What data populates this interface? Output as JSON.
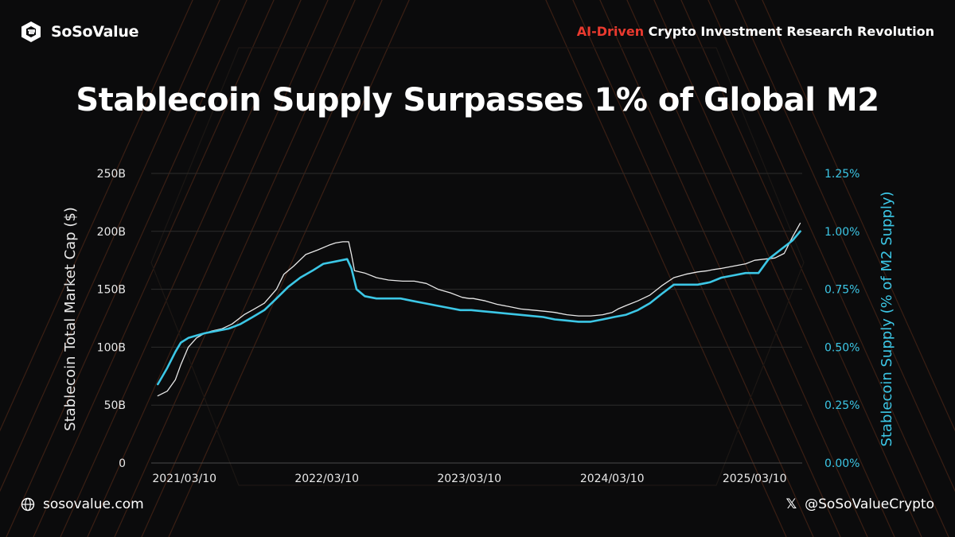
{
  "brand": {
    "name": "SoSoValue",
    "logo_icon": "sosovalue-logo-icon"
  },
  "tagline": {
    "accent": "AI-Driven",
    "rest": " Crypto Investment Research Revolution",
    "accent_color": "#ea3a2f"
  },
  "title": "Stablecoin Supply Surpasses 1% of Global M2",
  "footer": {
    "website": "sosovalue.com",
    "website_icon": "globe-icon",
    "social_handle": "@SoSoValueCrypto",
    "social_icon": "x-logo-icon"
  },
  "chart_data": {
    "type": "line",
    "title": "Stablecoin Supply Surpasses 1% of Global M2",
    "ylabel": "Stablecoin Total Market Cap ($)",
    "ylabel_right": "Stablecoin Supply (% of M2 Supply)",
    "ylim": [
      0,
      250
    ],
    "ylim_right": [
      0,
      1.25
    ],
    "xlim": [
      "2020-12-15",
      "2025-07-10"
    ],
    "y_ticks": [
      0,
      50,
      100,
      150,
      200,
      250
    ],
    "y_tick_labels": [
      "0",
      "50B",
      "100B",
      "150B",
      "200B",
      "250B"
    ],
    "y_right_ticks": [
      0,
      0.25,
      0.5,
      0.75,
      1.0,
      1.25
    ],
    "y_right_tick_labels": [
      "0.00%",
      "0.25%",
      "0.50%",
      "0.75%",
      "1.00%",
      "1.25%"
    ],
    "x_ticks": [
      "2021-03-10",
      "2022-03-10",
      "2023-03-10",
      "2024-03-10",
      "2025-03-10"
    ],
    "x_tick_labels": [
      "2021/03/10",
      "2022/03/10",
      "2023/03/10",
      "2024/03/10",
      "2025/03/10"
    ],
    "grid": true,
    "colors": {
      "market_cap": "#e8e8e8",
      "m2_share": "#3cc7e6",
      "right_axis": "#3cc7e6"
    },
    "series": [
      {
        "axis": "left",
        "x": [
          "2021-01-01",
          "2021-01-25",
          "2021-02-15",
          "2021-03-01",
          "2021-03-20",
          "2021-04-10",
          "2021-05-01",
          "2021-05-20",
          "2021-06-15",
          "2021-07-10",
          "2021-08-10",
          "2021-09-05",
          "2021-10-01",
          "2021-11-01",
          "2021-11-20",
          "2021-12-15",
          "2022-01-15",
          "2022-02-15",
          "2022-03-15",
          "2022-04-01",
          "2022-04-20",
          "2022-05-05",
          "2022-05-12",
          "2022-05-20",
          "2022-06-15",
          "2022-07-15",
          "2022-08-15",
          "2022-09-20",
          "2022-10-20",
          "2022-11-20",
          "2022-12-20",
          "2023-01-20",
          "2023-02-20",
          "2023-03-10",
          "2023-03-20",
          "2023-04-20",
          "2023-05-20",
          "2023-06-20",
          "2023-07-20",
          "2023-08-20",
          "2023-09-20",
          "2023-10-15",
          "2023-11-15",
          "2023-12-15",
          "2024-01-15",
          "2024-02-15",
          "2024-03-10",
          "2024-03-25",
          "2024-04-15",
          "2024-05-15",
          "2024-06-15",
          "2024-07-15",
          "2024-08-15",
          "2024-09-15",
          "2024-10-15",
          "2024-11-10",
          "2024-11-25",
          "2024-12-15",
          "2025-01-15",
          "2025-02-15",
          "2025-03-10",
          "2025-04-05",
          "2025-05-01",
          "2025-05-25",
          "2025-06-15",
          "2025-07-05"
        ],
        "values": [
          58,
          62,
          72,
          85,
          100,
          108,
          112,
          114,
          116,
          120,
          128,
          133,
          138,
          150,
          163,
          170,
          180,
          184,
          188,
          190,
          191,
          191,
          180,
          166,
          164,
          160,
          158,
          157,
          157,
          155,
          150,
          147,
          143,
          142,
          142,
          140,
          137,
          135,
          133,
          132,
          131,
          130,
          128,
          127,
          127,
          128,
          130,
          133,
          136,
          140,
          145,
          153,
          160,
          163,
          165,
          166,
          167,
          168,
          170,
          172,
          175,
          176,
          177,
          181,
          195,
          207
        ]
      },
      {
        "axis": "right",
        "x": [
          "2021-01-01",
          "2021-01-25",
          "2021-02-15",
          "2021-03-01",
          "2021-03-20",
          "2021-04-10",
          "2021-05-01",
          "2021-06-01",
          "2021-07-01",
          "2021-08-01",
          "2021-09-01",
          "2021-10-01",
          "2021-11-01",
          "2021-12-01",
          "2022-01-01",
          "2022-02-01",
          "2022-03-01",
          "2022-04-01",
          "2022-05-01",
          "2022-05-12",
          "2022-05-25",
          "2022-06-15",
          "2022-07-15",
          "2022-08-15",
          "2022-09-15",
          "2022-10-15",
          "2022-11-15",
          "2022-12-15",
          "2023-01-15",
          "2023-02-15",
          "2023-03-15",
          "2023-04-15",
          "2023-05-15",
          "2023-06-15",
          "2023-07-15",
          "2023-08-15",
          "2023-09-15",
          "2023-10-15",
          "2023-11-15",
          "2023-12-15",
          "2024-01-15",
          "2024-02-15",
          "2024-03-15",
          "2024-04-15",
          "2024-05-15",
          "2024-06-15",
          "2024-07-15",
          "2024-08-15",
          "2024-09-15",
          "2024-10-15",
          "2024-11-15",
          "2024-12-15",
          "2025-01-15",
          "2025-02-15",
          "2025-03-01",
          "2025-03-20",
          "2025-04-15",
          "2025-05-15",
          "2025-06-15",
          "2025-07-05"
        ],
        "values": [
          0.34,
          0.41,
          0.48,
          0.52,
          0.54,
          0.55,
          0.56,
          0.57,
          0.58,
          0.6,
          0.63,
          0.66,
          0.71,
          0.76,
          0.8,
          0.83,
          0.86,
          0.87,
          0.88,
          0.84,
          0.75,
          0.72,
          0.71,
          0.71,
          0.71,
          0.7,
          0.69,
          0.68,
          0.67,
          0.66,
          0.66,
          0.655,
          0.65,
          0.645,
          0.64,
          0.635,
          0.63,
          0.62,
          0.615,
          0.61,
          0.61,
          0.62,
          0.63,
          0.64,
          0.66,
          0.69,
          0.73,
          0.77,
          0.77,
          0.77,
          0.78,
          0.8,
          0.81,
          0.82,
          0.82,
          0.82,
          0.88,
          0.92,
          0.96,
          1.0
        ]
      }
    ]
  }
}
